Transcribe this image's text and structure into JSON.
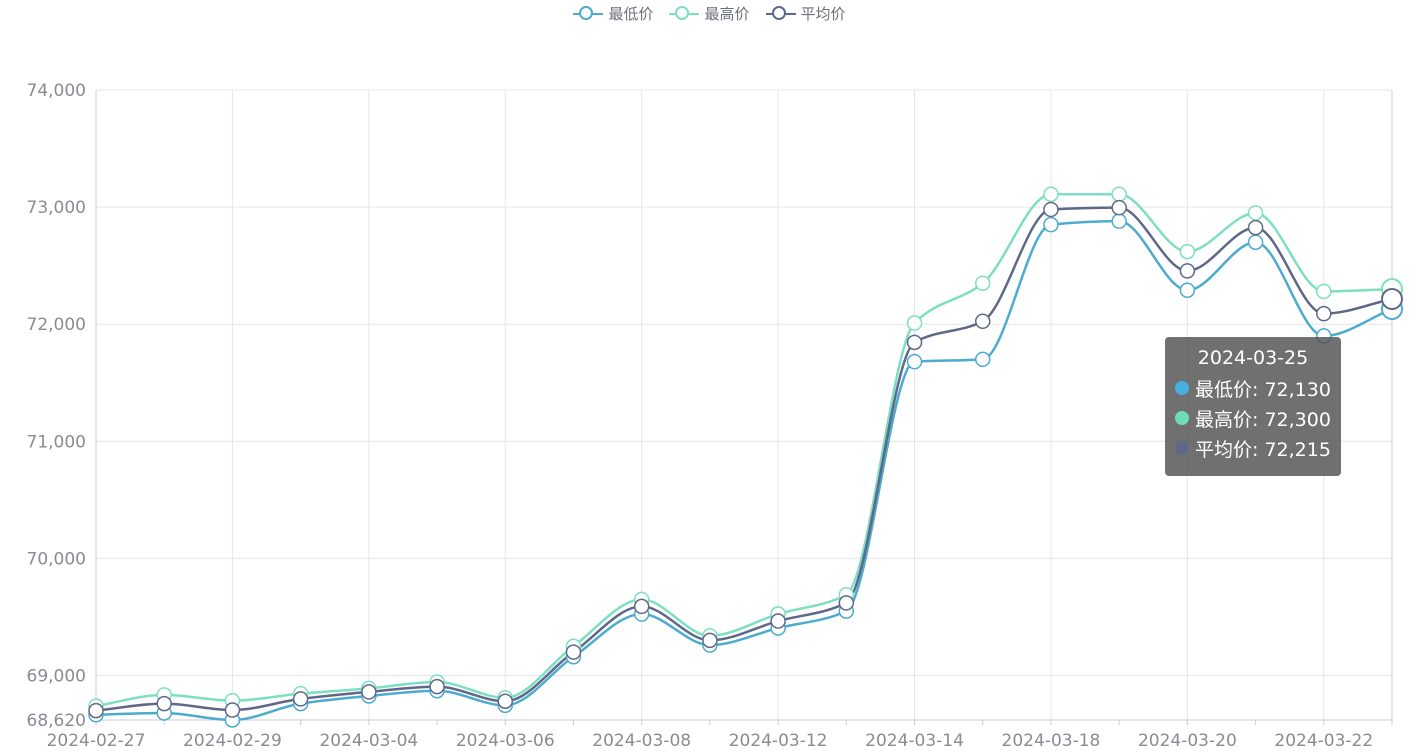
{
  "chart_data": {
    "type": "line",
    "smooth": true,
    "x": [
      "2024-02-27",
      "2024-02-28",
      "2024-02-29",
      "2024-03-01",
      "2024-03-04",
      "2024-03-05",
      "2024-03-06",
      "2024-03-07",
      "2024-03-08",
      "2024-03-11",
      "2024-03-12",
      "2024-03-13",
      "2024-03-14",
      "2024-03-15",
      "2024-03-18",
      "2024-03-19",
      "2024-03-20",
      "2024-03-21",
      "2024-03-22",
      "2024-03-25"
    ],
    "xticks": [
      "2024-02-27",
      "2024-02-29",
      "2024-03-04",
      "2024-03-06",
      "2024-03-08",
      "2024-03-12",
      "2024-03-14",
      "2024-03-18",
      "2024-03-20",
      "2024-03-22"
    ],
    "ylim": [
      68620,
      74000
    ],
    "yticks": [
      "74,000",
      "73,000",
      "72,000",
      "71,000",
      "70,000",
      "69,000",
      "68,620"
    ],
    "ytick_values": [
      74000,
      73000,
      72000,
      71000,
      70000,
      69000,
      68620
    ],
    "grid": true,
    "legend_position": "top-center",
    "series": [
      {
        "name": "最低价",
        "color": "#4cabce",
        "values": [
          68665,
          68680,
          68620,
          68760,
          68825,
          68870,
          68745,
          69160,
          69525,
          69260,
          69405,
          69550,
          71680,
          71700,
          72850,
          72880,
          72290,
          72700,
          71900,
          72130
        ]
      },
      {
        "name": "最高价",
        "color": "#7ddfc1",
        "values": [
          68740,
          68835,
          68785,
          68845,
          68890,
          68945,
          68810,
          69250,
          69650,
          69340,
          69525,
          69690,
          72010,
          72350,
          73110,
          73110,
          72620,
          72950,
          72280,
          72300
        ]
      },
      {
        "name": "平均价",
        "color": "#5f6889",
        "values": [
          68700,
          68760,
          68705,
          68800,
          68860,
          68905,
          68780,
          69200,
          69590,
          69300,
          69465,
          69620,
          71845,
          72025,
          72980,
          72995,
          72455,
          72825,
          72090,
          72215
        ]
      }
    ]
  },
  "tooltip": {
    "date": "2024-03-25",
    "rows": [
      {
        "label": "最低价: 72,130",
        "color": "#45b0e0"
      },
      {
        "label": "最高价: 72,300",
        "color": "#6fdcb9"
      },
      {
        "label": "平均价: 72,215",
        "color": "#5f6889"
      }
    ]
  }
}
